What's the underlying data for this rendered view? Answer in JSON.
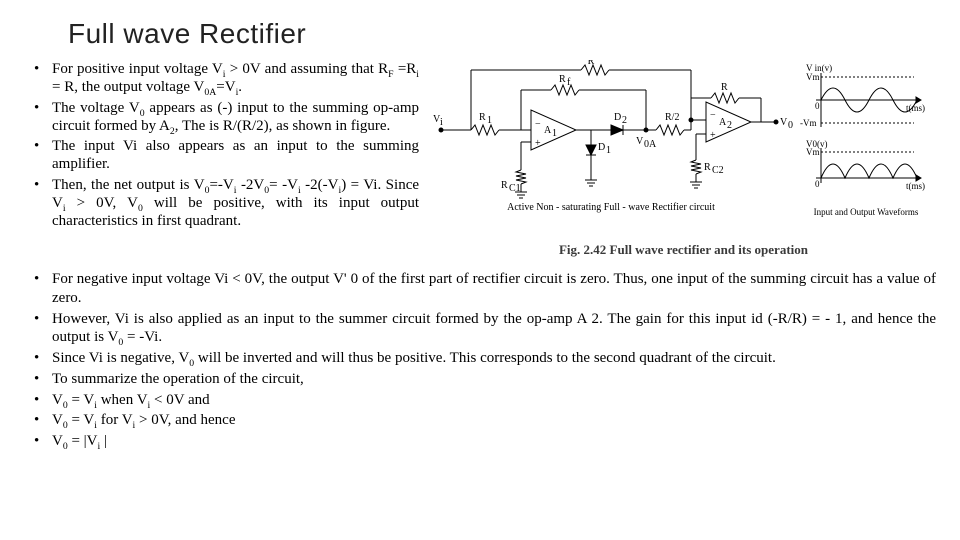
{
  "title": "Full wave Rectifier",
  "top_bullets": [
    "For positive input voltage V<sub>i</sub> > 0V and assuming that R<sub>F</sub> =R<sub>i</sub> = R, the output voltage V<sub>0A</sub>=V<sub>i</sub>.",
    "The voltage V<sub>0</sub> appears as (-) input to the summing op-amp circuit formed by A<sub>2</sub>, The is R/(R/2), as shown in figure.",
    "The input Vi also appears as an input to the summing amplifier.",
    "Then, the net output is V<sub>0</sub>=-V<sub>i</sub> -2V<sub>0</sub>= -V<sub>i</sub> -2(-V<sub>i</sub>) = Vi. Since V<sub>i</sub> > 0V, V<sub>0</sub> will be positive, with its input output characteristics in first quadrant."
  ],
  "lower_bullets": [
    "For negative input voltage Vi < 0V, the output V' 0 of the first part of rectifier circuit is zero. Thus, one input of the summing circuit has a value of zero.",
    "However, Vi is also applied as an input to the summer circuit formed by the op-amp A 2. The gain for this input id (-R/R) = - 1, and hence the output is V<sub>0</sub> = -Vi.",
    "Since Vi is negative, V<sub>0</sub> will be inverted and will thus be positive. This corresponds to the second quadrant of the circuit.",
    "To summarize the operation of the circuit,",
    "V<sub>0</sub> = V<sub>i</sub> when V<sub>i</sub> < 0V and",
    "V<sub>0</sub> = V<sub>i</sub> for V<sub>i</sub> > 0V, and hence",
    "V<sub>0</sub> = |V<sub>i</sub> |"
  ],
  "circuit": {
    "caption_label": "Active Non - saturating Full - wave Rectifier circuit",
    "fig_caption": "Fig. 2.42 Full wave rectifier and its operation",
    "labels": {
      "Vi": "V<sub>i</sub>",
      "R1": "R<sub>1</sub>",
      "R": "R",
      "Rf": "R<sub>f</sub>",
      "Rhalf": "R/2",
      "A1": "A<sub>1</sub>",
      "A2": "A<sub>2</sub>",
      "D1": "D<sub>1</sub>",
      "D2": "D<sub>2</sub>",
      "Rc1": "R<sub>C1</sub>",
      "Rc2": "R<sub>C2</sub>",
      "Voa_label": "V<sub>0A</sub>",
      "Vo": "V<sub>0</sub>"
    },
    "wave_labels": {
      "Vm": "Vm",
      "mVm": "-Vm",
      "zero": "0",
      "Vin": "V in(v)",
      "Vo": "V<sub>0</sub>(v)",
      "time": "t(ms)",
      "wave_caption": "Input and Output Waveforms"
    },
    "style": {
      "wire_color": "#000000",
      "wire_width": 1,
      "opamp_fill": "#ffffff",
      "diode_fill": "#000000",
      "resistor_stroke": "#000000",
      "background": "#ffffff",
      "font_size_labels": 10,
      "wave_color": "#000000",
      "axis_color": "#000000"
    }
  }
}
